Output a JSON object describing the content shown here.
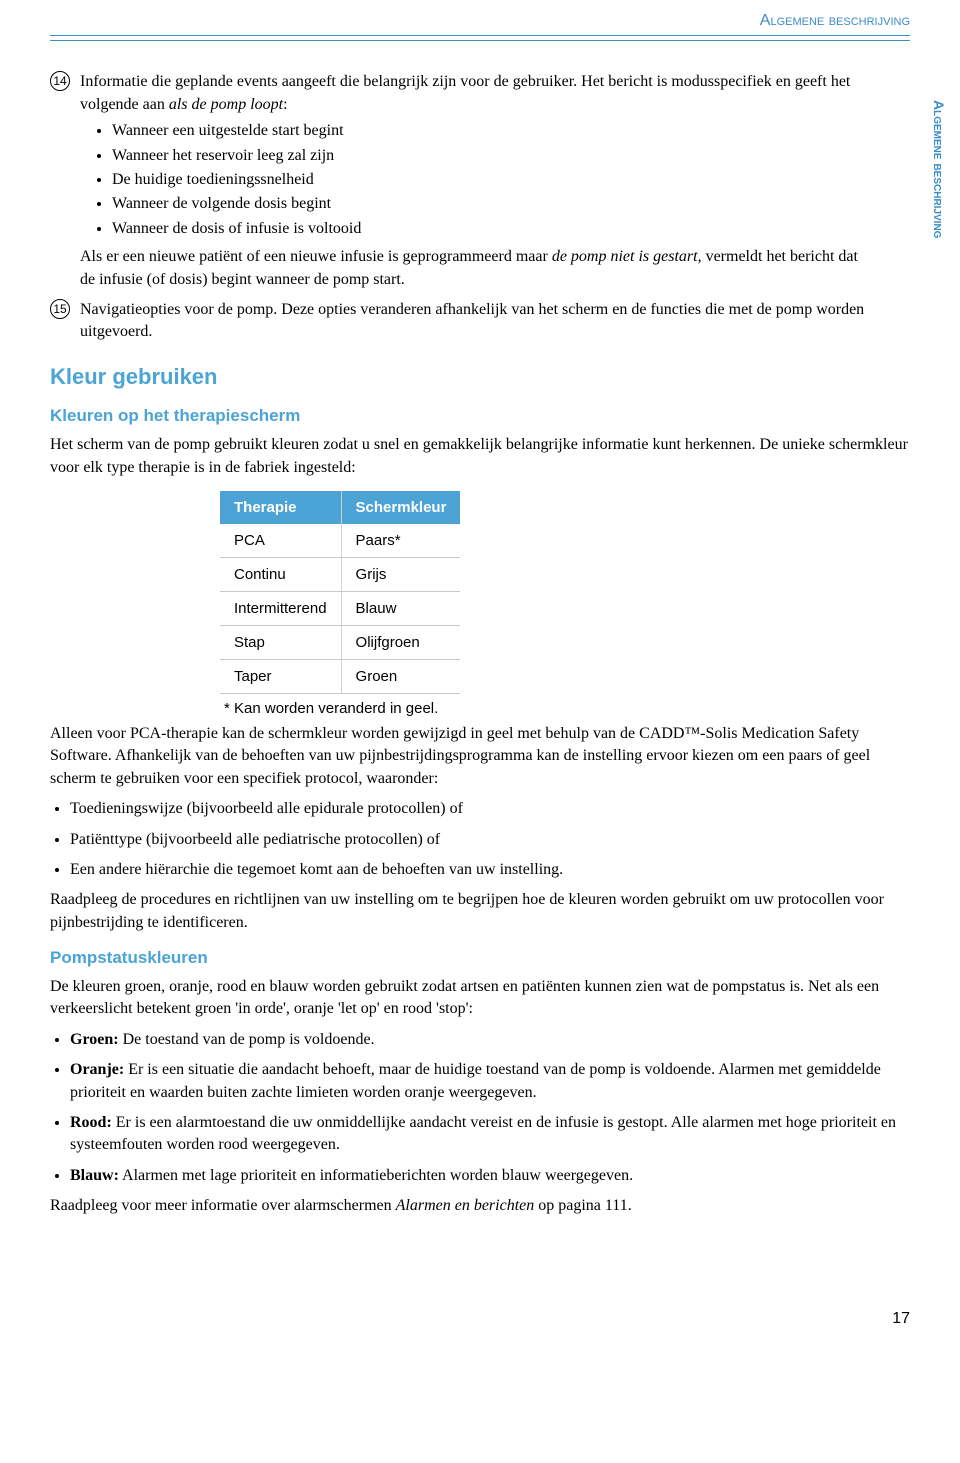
{
  "header": {
    "title": "Algemene beschrijving",
    "sidebar_tab": "Algemene beschrijving"
  },
  "item14": {
    "num": "14",
    "intro_a": "Informatie die geplande events aangeeft die belangrijk zijn voor de gebruiker. Het bericht is modusspecifiek en geeft het volgende aan ",
    "intro_b": "als de pomp loopt",
    "bullets": [
      "Wanneer een uitgestelde start begint",
      "Wanneer het reservoir leeg zal zijn",
      "De huidige toedieningssnelheid",
      "Wanneer de volgende dosis begint",
      "Wanneer de dosis of infusie is voltooid"
    ],
    "after_a": "Als er een nieuwe patiënt of een nieuwe infusie is geprogrammeerd maar ",
    "after_b": "de pomp niet is gestart",
    "after_c": ", vermeldt het bericht dat de infusie (of dosis) begint wanneer de pomp start."
  },
  "item15": {
    "num": "15",
    "text": "Navigatieopties voor de pomp. Deze opties veranderen afhankelijk van het scherm en de functies die met de pomp worden uitgevoerd."
  },
  "kleur": {
    "h2": "Kleur gebruiken",
    "h3a": "Kleuren op het therapiescherm",
    "p1": "Het scherm van de pomp gebruikt kleuren zodat u snel en gemakkelijk belangrijke informatie kunt herkennen. De unieke schermkleur voor elk type therapie is in de fabriek ingesteld:",
    "table": {
      "head": [
        "Therapie",
        "Schermkleur"
      ],
      "rows": [
        [
          "PCA",
          "Paars*"
        ],
        [
          "Continu",
          "Grijs"
        ],
        [
          "Intermitterend",
          "Blauw"
        ],
        [
          "Stap",
          "Olijfgroen"
        ],
        [
          "Taper",
          "Groen"
        ]
      ],
      "note": "* Kan worden veranderd in geel."
    },
    "p2": "Alleen voor PCA-therapie kan de schermkleur worden gewijzigd in geel met behulp van de CADD™-Solis Medication Safety Software. Afhankelijk van de behoeften van uw pijnbestrijdingsprogramma kan de instelling ervoor kiezen om een paars of geel scherm te gebruiken voor een specifiek protocol, waaronder:",
    "bullets2": [
      "Toedieningswijze (bijvoorbeeld alle epidurale protocollen) of",
      "Patiënttype (bijvoorbeeld alle pediatrische protocollen) of",
      "Een andere hiërarchie die tegemoet komt aan de behoeften van uw instelling."
    ],
    "p3": "Raadpleeg de procedures en richtlijnen van uw instelling om te begrijpen hoe de kleuren worden gebruikt om uw protocollen voor pijnbestrijding te identificeren.",
    "h3b": "Pompstatuskleuren",
    "p4": "De kleuren groen, oranje, rood en blauw worden gebruikt zodat artsen en patiënten kunnen zien wat de pompstatus is. Net als een verkeerslicht betekent groen 'in orde', oranje 'let op' en rood 'stop':",
    "status": [
      {
        "label": "Groen:",
        "text": "  De toestand van de pomp is voldoende."
      },
      {
        "label": "Oranje:",
        "text": "  Er is een situatie die aandacht behoeft, maar de huidige toestand van de pomp is voldoende. Alarmen met gemiddelde prioriteit en waarden buiten zachte limieten worden oranje weergegeven."
      },
      {
        "label": "Rood:",
        "text": "  Er is een alarmtoestand die uw onmiddellijke aandacht vereist en de infusie is gestopt. Alle alarmen met hoge prioriteit en systeemfouten worden rood weergegeven."
      },
      {
        "label": "Blauw:",
        "text": "  Alarmen met lage prioriteit en informatieberichten worden blauw weergegeven."
      }
    ],
    "p5a": "Raadpleeg voor meer informatie over alarmschermen ",
    "p5b": "Alarmen en berichten",
    "p5c": " op pagina 111."
  },
  "page_number": "17"
}
